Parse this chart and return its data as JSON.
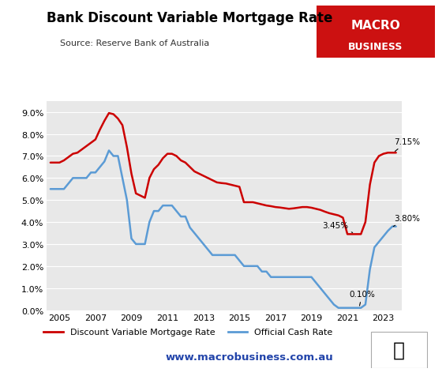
{
  "title": "Bank Discount Variable Mortgage Rate",
  "source": "Source: Reserve Bank of Australia",
  "website": "www.macrobusiness.com.au",
  "background_color": "#ffffff",
  "chart_bg": "#e8e8e8",
  "red_color": "#cc0000",
  "blue_color": "#5b9bd5",
  "ylim": [
    0.0,
    0.095
  ],
  "yticks": [
    0.0,
    0.01,
    0.02,
    0.03,
    0.04,
    0.05,
    0.06,
    0.07,
    0.08,
    0.09
  ],
  "ytick_labels": [
    "0.0%",
    "1.0%",
    "2.0%",
    "3.0%",
    "4.0%",
    "5.0%",
    "6.0%",
    "7.0%",
    "8.0%",
    "9.0%"
  ],
  "xlim": [
    2004.3,
    2024.0
  ],
  "xticks": [
    2005,
    2007,
    2009,
    2011,
    2013,
    2015,
    2017,
    2019,
    2021,
    2023
  ],
  "legend": [
    {
      "label": "Discount Variable Mortgage Rate",
      "color": "#cc0000"
    },
    {
      "label": "Official Cash Rate",
      "color": "#5b9bd5"
    }
  ],
  "mortgage_rate_data": {
    "x": [
      2004.5,
      2005.0,
      2005.25,
      2005.5,
      2005.75,
      2006.0,
      2006.25,
      2006.5,
      2006.75,
      2007.0,
      2007.25,
      2007.5,
      2007.75,
      2008.0,
      2008.25,
      2008.5,
      2008.75,
      2009.0,
      2009.25,
      2009.5,
      2009.75,
      2010.0,
      2010.25,
      2010.5,
      2010.75,
      2011.0,
      2011.25,
      2011.5,
      2011.75,
      2012.0,
      2012.25,
      2012.5,
      2012.75,
      2013.0,
      2013.25,
      2013.5,
      2013.75,
      2014.0,
      2014.25,
      2014.5,
      2014.75,
      2015.0,
      2015.25,
      2015.5,
      2015.75,
      2016.0,
      2016.25,
      2016.5,
      2016.75,
      2017.0,
      2017.25,
      2017.5,
      2017.75,
      2018.0,
      2018.25,
      2018.5,
      2018.75,
      2019.0,
      2019.25,
      2019.5,
      2019.75,
      2020.0,
      2020.25,
      2020.5,
      2020.75,
      2021.0,
      2021.25,
      2021.5,
      2021.75,
      2022.0,
      2022.25,
      2022.5,
      2022.75,
      2023.0,
      2023.25,
      2023.5,
      2023.7
    ],
    "y": [
      0.067,
      0.067,
      0.068,
      0.0695,
      0.071,
      0.0715,
      0.073,
      0.0745,
      0.076,
      0.0775,
      0.082,
      0.086,
      0.0895,
      0.089,
      0.087,
      0.084,
      0.074,
      0.062,
      0.053,
      0.052,
      0.051,
      0.06,
      0.064,
      0.066,
      0.069,
      0.071,
      0.071,
      0.07,
      0.068,
      0.067,
      0.065,
      0.063,
      0.062,
      0.061,
      0.06,
      0.059,
      0.058,
      0.0577,
      0.0575,
      0.057,
      0.0565,
      0.056,
      0.049,
      0.049,
      0.049,
      0.0485,
      0.048,
      0.0475,
      0.0472,
      0.0468,
      0.0466,
      0.0463,
      0.046,
      0.0462,
      0.0465,
      0.0468,
      0.0468,
      0.0465,
      0.046,
      0.0455,
      0.0447,
      0.044,
      0.0435,
      0.043,
      0.042,
      0.0345,
      0.0345,
      0.0345,
      0.0345,
      0.04,
      0.057,
      0.067,
      0.07,
      0.071,
      0.0715,
      0.0715,
      0.0715
    ]
  },
  "cash_rate_data": {
    "x": [
      2004.5,
      2005.0,
      2005.25,
      2005.5,
      2005.75,
      2006.0,
      2006.25,
      2006.5,
      2006.75,
      2007.0,
      2007.25,
      2007.5,
      2007.75,
      2008.0,
      2008.25,
      2008.5,
      2008.75,
      2009.0,
      2009.25,
      2009.5,
      2009.75,
      2010.0,
      2010.25,
      2010.5,
      2010.75,
      2011.0,
      2011.25,
      2011.5,
      2011.75,
      2012.0,
      2012.25,
      2012.5,
      2012.75,
      2013.0,
      2013.25,
      2013.5,
      2013.75,
      2014.0,
      2014.25,
      2014.5,
      2014.75,
      2015.0,
      2015.25,
      2015.5,
      2015.75,
      2016.0,
      2016.25,
      2016.5,
      2016.75,
      2017.0,
      2017.25,
      2017.5,
      2017.75,
      2018.0,
      2018.25,
      2018.5,
      2018.75,
      2019.0,
      2019.25,
      2019.5,
      2019.75,
      2020.0,
      2020.25,
      2020.5,
      2020.75,
      2021.0,
      2021.25,
      2021.5,
      2021.75,
      2022.0,
      2022.25,
      2022.5,
      2022.75,
      2023.0,
      2023.25,
      2023.5,
      2023.7
    ],
    "y": [
      0.055,
      0.055,
      0.055,
      0.0575,
      0.06,
      0.06,
      0.06,
      0.06,
      0.0625,
      0.0625,
      0.065,
      0.0675,
      0.0725,
      0.07,
      0.07,
      0.06,
      0.05,
      0.0325,
      0.03,
      0.03,
      0.03,
      0.04,
      0.045,
      0.045,
      0.0475,
      0.0475,
      0.0475,
      0.045,
      0.0425,
      0.0425,
      0.0375,
      0.035,
      0.0325,
      0.03,
      0.0275,
      0.025,
      0.025,
      0.025,
      0.025,
      0.025,
      0.025,
      0.0225,
      0.02,
      0.02,
      0.02,
      0.02,
      0.0175,
      0.0175,
      0.015,
      0.015,
      0.015,
      0.015,
      0.015,
      0.015,
      0.015,
      0.015,
      0.015,
      0.015,
      0.0125,
      0.01,
      0.0075,
      0.005,
      0.0025,
      0.001,
      0.001,
      0.001,
      0.001,
      0.001,
      0.001,
      0.0025,
      0.0185,
      0.0285,
      0.031,
      0.0335,
      0.036,
      0.038,
      0.038
    ]
  }
}
